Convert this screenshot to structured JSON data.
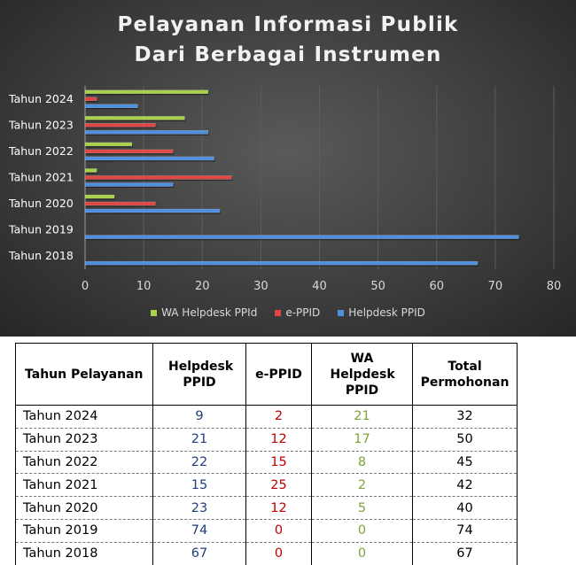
{
  "chart_data": {
    "type": "bar",
    "orientation": "horizontal",
    "title": "Pelayanan Informasi Publik",
    "subtitle": "Dari Berbagai Instrumen",
    "categories": [
      "Tahun 2018",
      "Tahun 2019",
      "Tahun 2020",
      "Tahun 2021",
      "Tahun 2022",
      "Tahun 2023",
      "Tahun 2024"
    ],
    "series": [
      {
        "name": "Helpdesk PPID",
        "color": "#4f8fe0",
        "values": [
          67,
          74,
          23,
          15,
          22,
          21,
          9
        ]
      },
      {
        "name": "e-PPID",
        "color": "#e04646",
        "values": [
          0,
          0,
          12,
          25,
          15,
          12,
          2
        ]
      },
      {
        "name": "WA Helpdesk PPId",
        "color": "#a7d14a",
        "values": [
          0,
          0,
          5,
          2,
          8,
          17,
          21
        ]
      }
    ],
    "xlim": [
      0,
      80
    ],
    "x_ticks": [
      "0",
      "10",
      "20",
      "30",
      "40",
      "50",
      "60",
      "70",
      "80"
    ],
    "grid": true,
    "legend_position": "bottom",
    "legend_order": [
      "WA Helpdesk PPId",
      "e-PPID",
      "Helpdesk PPID"
    ]
  },
  "table": {
    "headers": {
      "year": "Tahun Pelayanan",
      "helpdesk": "Helpdesk PPID",
      "eppid": "e-PPID",
      "wa": "WA Helpdesk PPID",
      "total": "Total Permohonan"
    },
    "rows": [
      {
        "year": "Tahun 2024",
        "helpdesk": "9",
        "eppid": "2",
        "wa": "21",
        "total": "32"
      },
      {
        "year": "Tahun 2023",
        "helpdesk": "21",
        "eppid": "12",
        "wa": "17",
        "total": "50"
      },
      {
        "year": "Tahun 2022",
        "helpdesk": "22",
        "eppid": "15",
        "wa": "8",
        "total": "45"
      },
      {
        "year": "Tahun 2021",
        "helpdesk": "15",
        "eppid": "25",
        "wa": "2",
        "total": "42"
      },
      {
        "year": "Tahun 2020",
        "helpdesk": "23",
        "eppid": "12",
        "wa": "5",
        "total": "40"
      },
      {
        "year": "Tahun 2019",
        "helpdesk": "74",
        "eppid": "0",
        "wa": "0",
        "total": "74"
      },
      {
        "year": "Tahun 2018",
        "helpdesk": "67",
        "eppid": "0",
        "wa": "0",
        "total": "67"
      }
    ]
  }
}
